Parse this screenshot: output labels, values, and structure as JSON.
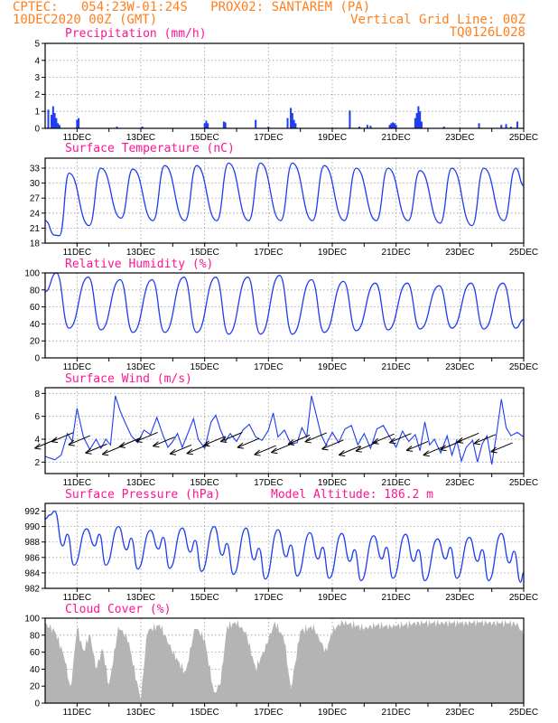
{
  "header": {
    "line1": "CPTEC:   054:23W-01:24S   PROX02: SANTAREM (PA)",
    "line2_left": "10DEC2020 00Z (GMT)",
    "line2_right": "Vertical Grid Line: 00Z",
    "line3_right": "TQ0126L028"
  },
  "colors": {
    "header": "#ff7f1e",
    "panel_title": "#ff1493",
    "series": "#1e3cf0",
    "cloud": "#b4b4b4",
    "arrow": "#000000"
  },
  "x_axis": {
    "start": "2020-12-10T00Z",
    "end": "2020-12-25T00Z",
    "labels": [
      "11DEC",
      "13DEC",
      "15DEC",
      "17DEC",
      "19DEC",
      "21DEC",
      "23DEC",
      "25DEC"
    ]
  },
  "chart_data": [
    {
      "id": "precip",
      "type": "bar",
      "title": "Precipitation (mm/h)",
      "ylim": [
        0,
        5
      ],
      "yticks": [
        "0",
        "1",
        "2",
        "3",
        "4",
        "5"
      ],
      "bars": [
        {
          "x": 0.1,
          "v": 1.1
        },
        {
          "x": 0.2,
          "v": 0.8
        },
        {
          "x": 0.25,
          "v": 1.3
        },
        {
          "x": 0.3,
          "v": 0.9
        },
        {
          "x": 0.35,
          "v": 0.6
        },
        {
          "x": 0.4,
          "v": 0.3
        },
        {
          "x": 0.45,
          "v": 0.2
        },
        {
          "x": 1.0,
          "v": 0.5
        },
        {
          "x": 1.05,
          "v": 0.6
        },
        {
          "x": 2.25,
          "v": 0.1
        },
        {
          "x": 3.05,
          "v": 0.1
        },
        {
          "x": 5.0,
          "v": 0.3
        },
        {
          "x": 5.05,
          "v": 0.45
        },
        {
          "x": 5.1,
          "v": 0.3
        },
        {
          "x": 5.6,
          "v": 0.4
        },
        {
          "x": 5.65,
          "v": 0.35
        },
        {
          "x": 6.6,
          "v": 0.5
        },
        {
          "x": 7.0,
          "v": 0.1
        },
        {
          "x": 7.6,
          "v": 0.6
        },
        {
          "x": 7.7,
          "v": 1.2
        },
        {
          "x": 7.75,
          "v": 0.9
        },
        {
          "x": 7.8,
          "v": 0.5
        },
        {
          "x": 7.85,
          "v": 0.3
        },
        {
          "x": 9.55,
          "v": 1.05
        },
        {
          "x": 9.85,
          "v": 0.1
        },
        {
          "x": 10.1,
          "v": 0.2
        },
        {
          "x": 10.2,
          "v": 0.15
        },
        {
          "x": 10.8,
          "v": 0.2
        },
        {
          "x": 10.85,
          "v": 0.3
        },
        {
          "x": 10.9,
          "v": 0.35
        },
        {
          "x": 10.95,
          "v": 0.3
        },
        {
          "x": 11.0,
          "v": 0.2
        },
        {
          "x": 11.6,
          "v": 0.6
        },
        {
          "x": 11.65,
          "v": 0.9
        },
        {
          "x": 11.7,
          "v": 1.3
        },
        {
          "x": 11.75,
          "v": 1.0
        },
        {
          "x": 11.8,
          "v": 0.4
        },
        {
          "x": 12.5,
          "v": 0.1
        },
        {
          "x": 13.6,
          "v": 0.3
        },
        {
          "x": 14.3,
          "v": 0.2
        },
        {
          "x": 14.45,
          "v": 0.25
        },
        {
          "x": 14.6,
          "v": 0.1
        },
        {
          "x": 14.8,
          "v": 0.4
        }
      ]
    },
    {
      "id": "temp",
      "type": "line",
      "title": "Surface Temperature (nC)",
      "ylim": [
        18,
        35
      ],
      "yticks": [
        "18",
        "21",
        "24",
        "27",
        "30",
        "33"
      ],
      "min_values": [
        19.5,
        21.5,
        23.0,
        22.5,
        22.5,
        22.5,
        22.5,
        22.5,
        22.5,
        22.5,
        22.5,
        22.5,
        22.0,
        21.5,
        22.5
      ],
      "max_values": [
        32.0,
        33.0,
        32.8,
        33.5,
        33.5,
        34.0,
        34.0,
        34.0,
        33.5,
        33.0,
        33.0,
        32.5,
        33.0,
        33.0,
        33.0
      ],
      "end_value": 29.5
    },
    {
      "id": "rh",
      "type": "line",
      "title": "Relative Humidity (%)",
      "ylim": [
        0,
        100
      ],
      "yticks": [
        "0",
        "20",
        "40",
        "60",
        "80",
        "100"
      ],
      "min_values": [
        35,
        33,
        30,
        30,
        30,
        28,
        28,
        28,
        30,
        32,
        33,
        34,
        35,
        34,
        35
      ],
      "max_values": [
        100,
        95,
        92,
        92,
        95,
        95,
        95,
        97,
        92,
        90,
        88,
        88,
        85,
        88,
        88
      ],
      "end_value": 45
    },
    {
      "id": "wind",
      "type": "line",
      "title": "Surface Wind (m/s)",
      "ylim": [
        1,
        8.5
      ],
      "yticks": [
        "2",
        "4",
        "6",
        "8"
      ],
      "series": [
        {
          "points": [
            [
              0,
              2.5
            ],
            [
              0.3,
              2.2
            ],
            [
              0.5,
              2.6
            ],
            [
              0.7,
              4.5
            ],
            [
              0.85,
              3.8
            ],
            [
              1.0,
              6.7
            ],
            [
              1.2,
              4.2
            ],
            [
              1.4,
              3.1
            ],
            [
              1.6,
              4.0
            ],
            [
              1.75,
              3.2
            ],
            [
              1.9,
              4.0
            ],
            [
              2.05,
              3.5
            ],
            [
              2.2,
              7.8
            ],
            [
              2.35,
              6.5
            ],
            [
              2.5,
              5.5
            ],
            [
              2.7,
              4.3
            ],
            [
              2.9,
              3.7
            ],
            [
              3.1,
              4.8
            ],
            [
              3.3,
              4.4
            ],
            [
              3.5,
              5.9
            ],
            [
              3.7,
              4.3
            ],
            [
              3.85,
              3.3
            ],
            [
              4.0,
              3.8
            ],
            [
              4.15,
              4.5
            ],
            [
              4.3,
              3.3
            ],
            [
              4.5,
              4.7
            ],
            [
              4.65,
              5.8
            ],
            [
              4.8,
              4.0
            ],
            [
              5.0,
              3.2
            ],
            [
              5.2,
              5.5
            ],
            [
              5.35,
              6.1
            ],
            [
              5.5,
              4.8
            ],
            [
              5.65,
              3.8
            ],
            [
              5.8,
              4.5
            ],
            [
              6.0,
              3.8
            ],
            [
              6.2,
              4.8
            ],
            [
              6.4,
              5.3
            ],
            [
              6.6,
              4.2
            ],
            [
              6.8,
              3.9
            ],
            [
              7.0,
              4.8
            ],
            [
              7.15,
              6.3
            ],
            [
              7.3,
              4.2
            ],
            [
              7.5,
              4.8
            ],
            [
              7.7,
              3.6
            ],
            [
              7.9,
              3.7
            ],
            [
              8.05,
              5.0
            ],
            [
              8.2,
              4.2
            ],
            [
              8.35,
              7.8
            ],
            [
              8.5,
              6.1
            ],
            [
              8.65,
              4.4
            ],
            [
              8.8,
              3.5
            ],
            [
              9.0,
              4.6
            ],
            [
              9.2,
              3.7
            ],
            [
              9.4,
              4.9
            ],
            [
              9.6,
              5.2
            ],
            [
              9.8,
              3.5
            ],
            [
              10.0,
              4.5
            ],
            [
              10.2,
              3.2
            ],
            [
              10.4,
              4.9
            ],
            [
              10.6,
              5.2
            ],
            [
              10.8,
              4.2
            ],
            [
              11.0,
              3.3
            ],
            [
              11.2,
              4.7
            ],
            [
              11.4,
              3.8
            ],
            [
              11.6,
              4.4
            ],
            [
              11.75,
              3.0
            ],
            [
              11.9,
              5.5
            ],
            [
              12.05,
              3.5
            ],
            [
              12.2,
              4.0
            ],
            [
              12.4,
              2.8
            ],
            [
              12.6,
              4.3
            ],
            [
              12.75,
              2.6
            ],
            [
              12.9,
              3.9
            ],
            [
              13.05,
              2.1
            ],
            [
              13.2,
              3.3
            ],
            [
              13.4,
              3.9
            ],
            [
              13.55,
              2.0
            ],
            [
              13.7,
              3.6
            ],
            [
              13.85,
              4.3
            ],
            [
              14.0,
              1.8
            ],
            [
              14.15,
              4.5
            ],
            [
              14.3,
              7.5
            ],
            [
              14.45,
              5.0
            ],
            [
              14.6,
              4.3
            ],
            [
              14.8,
              4.6
            ],
            [
              15.0,
              4.2
            ]
          ]
        }
      ],
      "arrow_count": 28
    },
    {
      "id": "pres",
      "type": "line",
      "title": "Surface Pressure (hPa)",
      "annotation": "Model Altitude: 186.2 m",
      "ylim": [
        982,
        993
      ],
      "yticks": [
        "982",
        "984",
        "986",
        "988",
        "990",
        "992"
      ],
      "daily_max": [
        992.0,
        989.7,
        990.0,
        989.5,
        989.8,
        990.0,
        989.8,
        989.6,
        989.2,
        989.1,
        988.8,
        989.0,
        988.4,
        988.6,
        989.1
      ],
      "daily_min": [
        985.0,
        985.0,
        984.5,
        984.6,
        984.2,
        983.8,
        983.2,
        983.6,
        983.3,
        983.0,
        983.3,
        983.0,
        983.3,
        983.0,
        982.8
      ],
      "end_value": 984.0
    },
    {
      "id": "cloud",
      "type": "area",
      "title": "Cloud Cover (%)",
      "ylim": [
        0,
        100
      ],
      "yticks": [
        "0",
        "20",
        "40",
        "60",
        "80",
        "100"
      ],
      "profile": [
        [
          0,
          93
        ],
        [
          0.3,
          85
        ],
        [
          0.6,
          55
        ],
        [
          0.8,
          15
        ],
        [
          1.0,
          90
        ],
        [
          1.2,
          60
        ],
        [
          1.4,
          82
        ],
        [
          1.6,
          40
        ],
        [
          1.8,
          65
        ],
        [
          2.0,
          20
        ],
        [
          2.3,
          90
        ],
        [
          2.6,
          75
        ],
        [
          2.9,
          20
        ],
        [
          3.0,
          5
        ],
        [
          3.2,
          85
        ],
        [
          3.6,
          92
        ],
        [
          4.0,
          60
        ],
        [
          4.4,
          35
        ],
        [
          4.7,
          90
        ],
        [
          5.0,
          75
        ],
        [
          5.3,
          10
        ],
        [
          5.5,
          25
        ],
        [
          5.7,
          90
        ],
        [
          6.0,
          95
        ],
        [
          6.3,
          82
        ],
        [
          6.6,
          40
        ],
        [
          6.9,
          65
        ],
        [
          7.2,
          95
        ],
        [
          7.5,
          75
        ],
        [
          7.7,
          15
        ],
        [
          8.0,
          85
        ],
        [
          8.4,
          90
        ],
        [
          8.8,
          60
        ],
        [
          9.0,
          85
        ],
        [
          9.3,
          95
        ],
        [
          9.7,
          92
        ],
        [
          10.0,
          88
        ],
        [
          10.4,
          92
        ],
        [
          10.8,
          90
        ],
        [
          11.2,
          92
        ],
        [
          11.6,
          94
        ],
        [
          12.0,
          95
        ],
        [
          12.4,
          94
        ],
        [
          12.8,
          95
        ],
        [
          13.2,
          94
        ],
        [
          13.6,
          96
        ],
        [
          14.0,
          94
        ],
        [
          14.4,
          95
        ],
        [
          14.8,
          93
        ],
        [
          15.0,
          80
        ]
      ]
    }
  ]
}
